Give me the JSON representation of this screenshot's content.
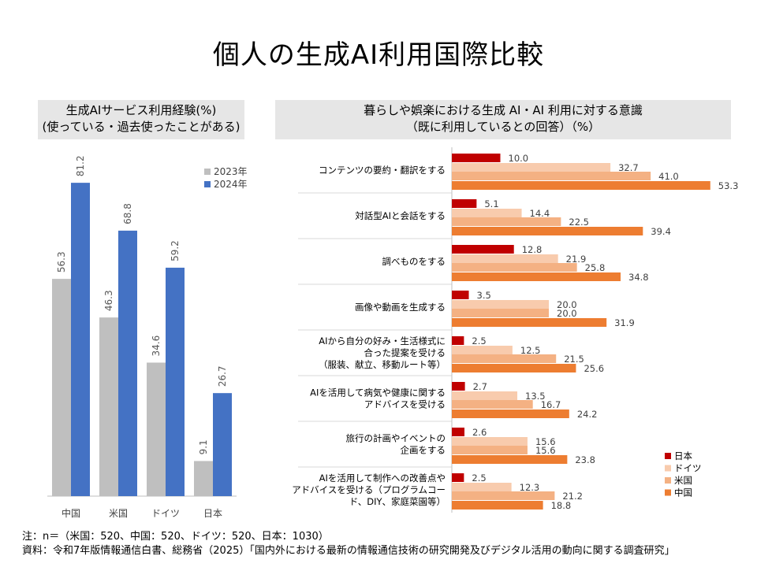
{
  "title": "個人の生成AI利用国際比較",
  "left_header": {
    "line1": "生成AIサービス利用経験(%)",
    "line2": "(使っている・過去使ったことがある)"
  },
  "right_header": {
    "line1": "暮らしや娯楽における生成 AI・AI 利用に対する意識",
    "line2": "（既に利用しているとの回答）（%）"
  },
  "colors": {
    "y2023": "#bfbfbf",
    "y2024": "#4472c4",
    "japan": "#c00000",
    "germany": "#f8cbad",
    "us": "#f4b183",
    "china": "#ed7d31",
    "grid": "#d9d9d9",
    "axis": "#bfbfbf"
  },
  "chart_data": [
    {
      "type": "bar",
      "categories": [
        "中国",
        "米国",
        "ドイツ",
        "日本"
      ],
      "series": [
        {
          "name": "2023年",
          "values": [
            56.3,
            46.3,
            34.6,
            9.1
          ]
        },
        {
          "name": "2024年",
          "values": [
            81.2,
            68.8,
            59.2,
            26.7
          ]
        }
      ],
      "ylim": [
        0,
        90
      ]
    },
    {
      "type": "bar",
      "orientation": "horizontal",
      "categories": [
        [
          "コンテンツの要約・翻訳をする"
        ],
        [
          "対話型AIと会話をする"
        ],
        [
          "調べものをする"
        ],
        [
          "画像や動画を生成する"
        ],
        [
          "AIから自分の好み・生活様式に",
          "合った提案を受ける",
          "（服装、献立、移動ルート等）"
        ],
        [
          "AIを活用して病気や健康に関する",
          "アドバイスを受ける"
        ],
        [
          "旅行の計画やイベントの",
          "企画をする"
        ],
        [
          "AIを活用して制作への改善点や",
          "アドバイスを受ける（プログラムコー",
          "ド、DIY、家庭菜園等）"
        ]
      ],
      "series": [
        {
          "name": "日本",
          "values": [
            10.0,
            5.1,
            12.8,
            3.5,
            2.5,
            2.7,
            2.6,
            2.5
          ]
        },
        {
          "name": "ドイツ",
          "values": [
            32.7,
            14.4,
            21.9,
            20.0,
            12.5,
            13.5,
            15.6,
            12.3
          ]
        },
        {
          "name": "米国",
          "values": [
            41.0,
            22.5,
            25.8,
            20.0,
            21.5,
            16.7,
            15.6,
            21.2
          ]
        },
        {
          "name": "中国",
          "values": [
            53.3,
            39.4,
            34.8,
            31.9,
            25.6,
            24.2,
            23.8,
            18.8
          ]
        }
      ],
      "xlim": [
        0,
        60
      ]
    }
  ],
  "notes": {
    "line1": "注：n＝（米国：520、中国：520、ドイツ：520、日本：1030）",
    "line2": "資料：令和7年版情報通信白書、総務省（2025）「国内外における最新の情報通信技術の研究開発及びデジタル活用の動向に関する調査研究」"
  }
}
